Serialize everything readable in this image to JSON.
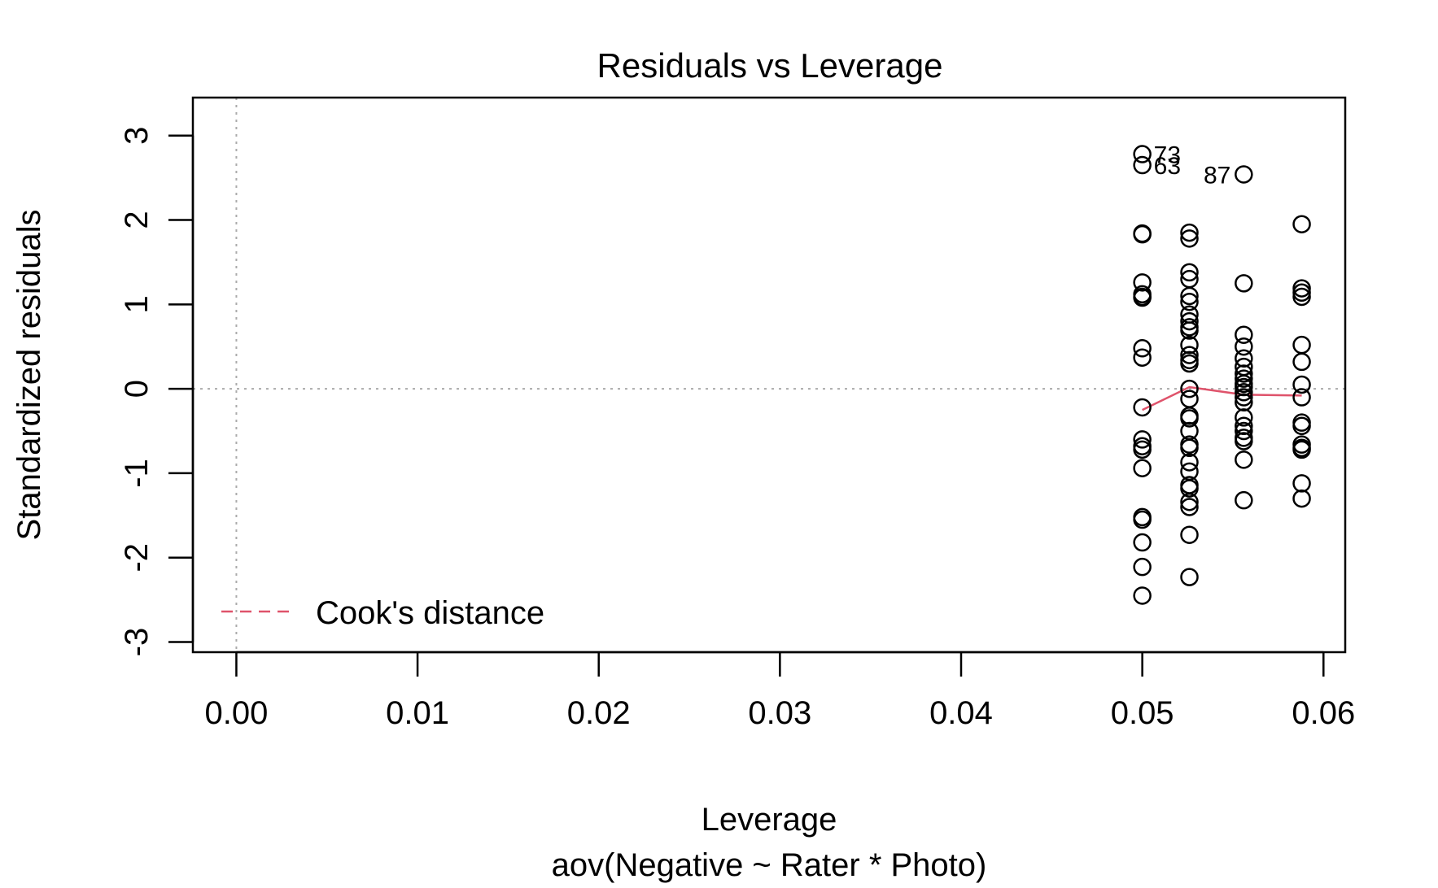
{
  "chart_data": {
    "type": "scatter",
    "title": "Residuals vs Leverage",
    "xlabel": "Leverage",
    "subtitle": "aov(Negative ~ Rater * Photo)",
    "ylabel": "Standardized residuals",
    "xlim": [
      -0.0024,
      0.0612
    ],
    "ylim": [
      -3.12,
      3.45
    ],
    "x_ticks": [
      0.0,
      0.01,
      0.02,
      0.03,
      0.04,
      0.05,
      0.06
    ],
    "x_tick_labels": [
      "0.00",
      "0.01",
      "0.02",
      "0.03",
      "0.04",
      "0.05",
      "0.06"
    ],
    "y_ticks": [
      -3,
      -2,
      -1,
      0,
      1,
      2,
      3
    ],
    "y_tick_labels": [
      "-3",
      "-2",
      "-1",
      "0",
      "1",
      "2",
      "3"
    ],
    "reference_lines": {
      "x": 0,
      "y": 0,
      "style": "dotted",
      "color": "#aaaaaa"
    },
    "legend": {
      "position": "bottom-left",
      "entries": [
        {
          "label": "Cook's distance",
          "color": "#DF536B",
          "style": "dashed"
        }
      ]
    },
    "points": [
      {
        "x": 0.05,
        "y": 2.78
      },
      {
        "x": 0.05,
        "y": 2.65
      },
      {
        "x": 0.05,
        "y": 1.84
      },
      {
        "x": 0.05,
        "y": 1.83
      },
      {
        "x": 0.05,
        "y": 1.26
      },
      {
        "x": 0.05,
        "y": 1.12
      },
      {
        "x": 0.05,
        "y": 1.09
      },
      {
        "x": 0.05,
        "y": 1.08
      },
      {
        "x": 0.05,
        "y": 0.48
      },
      {
        "x": 0.05,
        "y": 0.37
      },
      {
        "x": 0.05,
        "y": -0.22
      },
      {
        "x": 0.05,
        "y": -0.6
      },
      {
        "x": 0.05,
        "y": -0.68
      },
      {
        "x": 0.05,
        "y": -0.72
      },
      {
        "x": 0.05,
        "y": -0.94
      },
      {
        "x": 0.05,
        "y": -1.52
      },
      {
        "x": 0.05,
        "y": -1.55
      },
      {
        "x": 0.05,
        "y": -1.82
      },
      {
        "x": 0.05,
        "y": -2.11
      },
      {
        "x": 0.05,
        "y": -2.45
      },
      {
        "x": 0.0526,
        "y": 1.85
      },
      {
        "x": 0.0526,
        "y": 1.78
      },
      {
        "x": 0.0526,
        "y": 1.38
      },
      {
        "x": 0.0526,
        "y": 1.3
      },
      {
        "x": 0.0526,
        "y": 1.1
      },
      {
        "x": 0.0526,
        "y": 1.03
      },
      {
        "x": 0.0526,
        "y": 0.88
      },
      {
        "x": 0.0526,
        "y": 0.8
      },
      {
        "x": 0.0526,
        "y": 0.73
      },
      {
        "x": 0.0526,
        "y": 0.69
      },
      {
        "x": 0.0526,
        "y": 0.52
      },
      {
        "x": 0.0526,
        "y": 0.4
      },
      {
        "x": 0.0526,
        "y": 0.34
      },
      {
        "x": 0.0526,
        "y": 0.3
      },
      {
        "x": 0.0526,
        "y": 0.0
      },
      {
        "x": 0.0526,
        "y": -0.12
      },
      {
        "x": 0.0526,
        "y": -0.32
      },
      {
        "x": 0.0526,
        "y": -0.35
      },
      {
        "x": 0.0526,
        "y": -0.5
      },
      {
        "x": 0.0526,
        "y": -0.66
      },
      {
        "x": 0.0526,
        "y": -0.7
      },
      {
        "x": 0.0526,
        "y": -0.87
      },
      {
        "x": 0.0526,
        "y": -0.98
      },
      {
        "x": 0.0526,
        "y": -1.14
      },
      {
        "x": 0.0526,
        "y": -1.18
      },
      {
        "x": 0.0526,
        "y": -1.34
      },
      {
        "x": 0.0526,
        "y": -1.4
      },
      {
        "x": 0.0526,
        "y": -1.73
      },
      {
        "x": 0.0526,
        "y": -2.23
      },
      {
        "x": 0.0556,
        "y": 2.54
      },
      {
        "x": 0.0556,
        "y": 1.25
      },
      {
        "x": 0.0556,
        "y": 0.64
      },
      {
        "x": 0.0556,
        "y": 0.5
      },
      {
        "x": 0.0556,
        "y": 0.36
      },
      {
        "x": 0.0556,
        "y": 0.26
      },
      {
        "x": 0.0556,
        "y": 0.18
      },
      {
        "x": 0.0556,
        "y": 0.12
      },
      {
        "x": 0.0556,
        "y": 0.06
      },
      {
        "x": 0.0556,
        "y": 0.02
      },
      {
        "x": 0.0556,
        "y": -0.04
      },
      {
        "x": 0.0556,
        "y": -0.1
      },
      {
        "x": 0.0556,
        "y": -0.16
      },
      {
        "x": 0.0556,
        "y": -0.34
      },
      {
        "x": 0.0556,
        "y": -0.44
      },
      {
        "x": 0.0556,
        "y": -0.5
      },
      {
        "x": 0.0556,
        "y": -0.58
      },
      {
        "x": 0.0556,
        "y": -0.62
      },
      {
        "x": 0.0556,
        "y": -0.84
      },
      {
        "x": 0.0556,
        "y": -1.32
      },
      {
        "x": 0.0588,
        "y": 1.95
      },
      {
        "x": 0.0588,
        "y": 1.19
      },
      {
        "x": 0.0588,
        "y": 1.14
      },
      {
        "x": 0.0588,
        "y": 1.09
      },
      {
        "x": 0.0588,
        "y": 0.52
      },
      {
        "x": 0.0588,
        "y": 0.32
      },
      {
        "x": 0.0588,
        "y": 0.05
      },
      {
        "x": 0.0588,
        "y": -0.1
      },
      {
        "x": 0.0588,
        "y": -0.4
      },
      {
        "x": 0.0588,
        "y": -0.44
      },
      {
        "x": 0.0588,
        "y": -0.66
      },
      {
        "x": 0.0588,
        "y": -0.7
      },
      {
        "x": 0.0588,
        "y": -0.72
      },
      {
        "x": 0.0588,
        "y": -1.12
      },
      {
        "x": 0.0588,
        "y": -1.3
      }
    ],
    "point_labels": [
      {
        "text": "73",
        "x": 0.05,
        "y": 2.78
      },
      {
        "text": "63",
        "x": 0.05,
        "y": 2.65
      },
      {
        "text": "87",
        "x": 0.0556,
        "y": 2.54
      }
    ],
    "smoother": {
      "color": "#DF536B",
      "x": [
        0.05,
        0.0526,
        0.0556,
        0.0588
      ],
      "y": [
        -0.25,
        0.02,
        -0.07,
        -0.08
      ]
    }
  }
}
